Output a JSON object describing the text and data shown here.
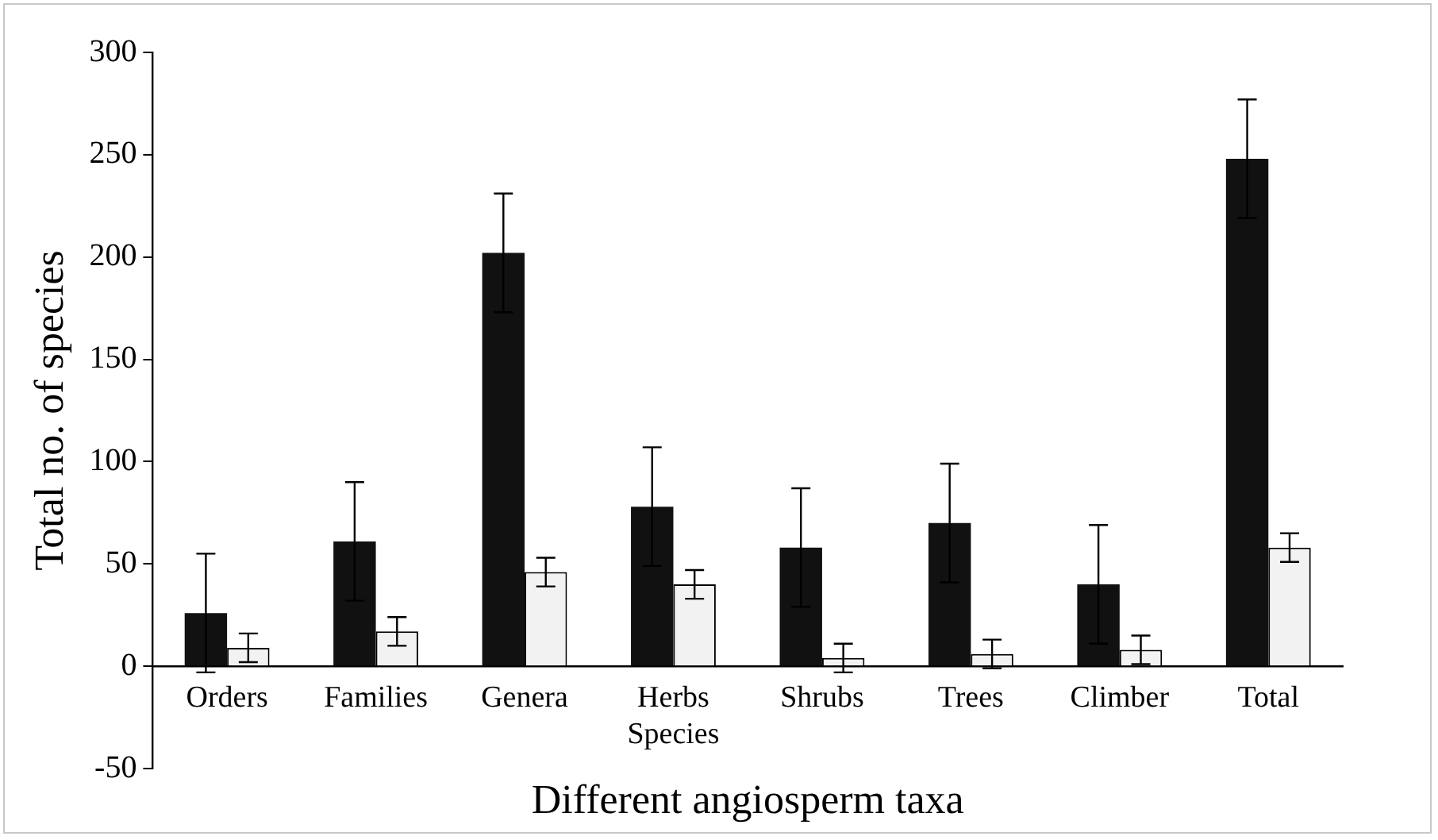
{
  "chart_data": {
    "type": "bar",
    "xlabel": "Different angiosperm taxa",
    "ylabel": "Total no. of species",
    "categories": [
      "Orders",
      "Families",
      "Genera",
      "Herbs Species",
      "Shrubs",
      "Trees",
      "Climber",
      "Total"
    ],
    "series": [
      {
        "color": "#111111",
        "values": [
          26,
          61,
          202,
          78,
          58,
          70,
          40,
          248
        ],
        "errors": [
          29,
          29,
          29,
          29,
          29,
          29,
          29,
          29
        ]
      },
      {
        "color": "#f2f2f2",
        "values": [
          9,
          17,
          46,
          40,
          4,
          6,
          8,
          58
        ],
        "errors": [
          7,
          7,
          7,
          7,
          7,
          7,
          7,
          7
        ]
      }
    ],
    "ylim": [
      -50,
      300
    ],
    "yticks": [
      -50,
      0,
      50,
      100,
      150,
      200,
      250,
      300
    ],
    "grid": false,
    "legend": false
  }
}
